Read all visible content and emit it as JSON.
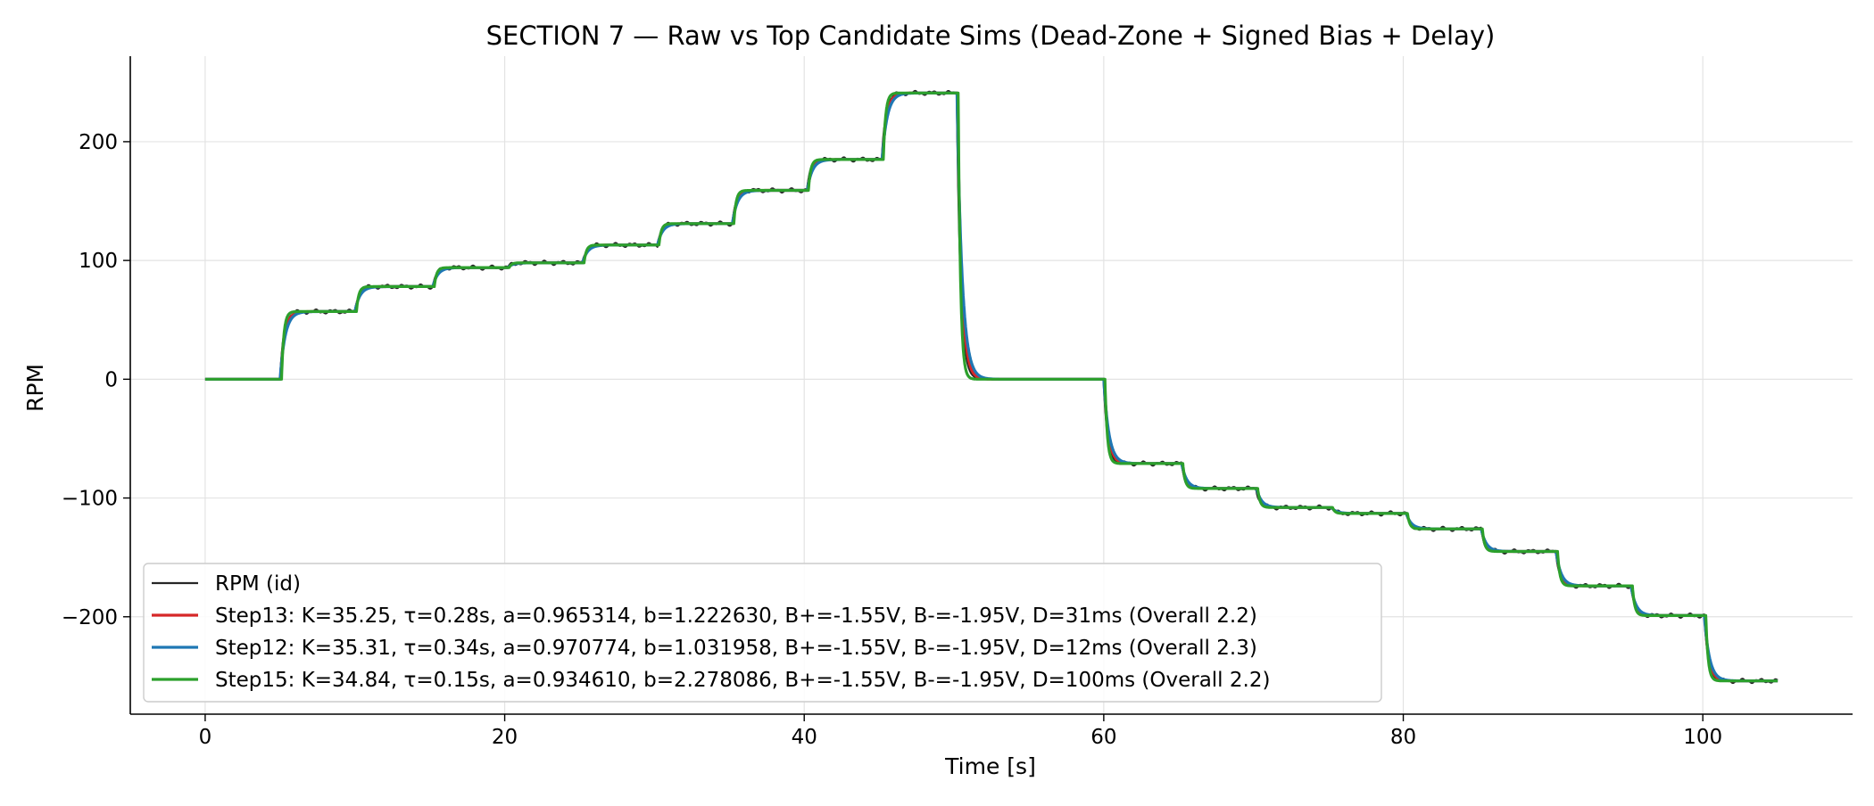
{
  "chart_data": {
    "type": "line",
    "title": "SECTION 7 — Raw vs Top Candidate Sims (Dead-Zone + Signed Bias + Delay)",
    "xlabel": "Time [s]",
    "ylabel": "RPM",
    "xlim": [
      -5,
      110
    ],
    "ylim": [
      -282,
      272
    ],
    "xticks": [
      0,
      20,
      40,
      60,
      80,
      100
    ],
    "yticks": [
      -200,
      -100,
      0,
      100,
      200
    ],
    "grid": true,
    "legend_position": "lower-left",
    "steps": [
      {
        "t": 0,
        "rpm": 0
      },
      {
        "t": 5,
        "rpm": 57
      },
      {
        "t": 10,
        "rpm": 78
      },
      {
        "t": 15.2,
        "rpm": 94
      },
      {
        "t": 20.2,
        "rpm": 98
      },
      {
        "t": 25.2,
        "rpm": 113
      },
      {
        "t": 30.2,
        "rpm": 131
      },
      {
        "t": 35.2,
        "rpm": 159
      },
      {
        "t": 40.2,
        "rpm": 185
      },
      {
        "t": 45.2,
        "rpm": 241
      },
      {
        "t": 50.2,
        "rpm": 0
      },
      {
        "t": 60,
        "rpm": -71
      },
      {
        "t": 65.2,
        "rpm": -92
      },
      {
        "t": 70.2,
        "rpm": -108
      },
      {
        "t": 75.2,
        "rpm": -113
      },
      {
        "t": 80.2,
        "rpm": -126
      },
      {
        "t": 85.2,
        "rpm": -145
      },
      {
        "t": 90.2,
        "rpm": -174
      },
      {
        "t": 95.2,
        "rpm": -199
      },
      {
        "t": 100.1,
        "rpm": -254
      }
    ],
    "t_end": 105,
    "series": [
      {
        "name": "RPM (id)",
        "color": "#262626",
        "stroke_width": 2.2,
        "kind": "raw"
      },
      {
        "name": "Step13: K=35.25, τ=0.28s, a=0.965314, b=1.222630, B+=-1.55V, B-=-1.95V, D=31ms  (Overall 2.2)",
        "color": "#d62728",
        "stroke_width": 3.2,
        "tau": 0.28,
        "delay": 0.031
      },
      {
        "name": "Step12: K=35.31, τ=0.34s, a=0.970774, b=1.031958, B+=-1.55V, B-=-1.95V, D=12ms  (Overall 2.3)",
        "color": "#1f77b4",
        "stroke_width": 3.2,
        "tau": 0.34,
        "delay": 0.012
      },
      {
        "name": "Step15: K=34.84, τ=0.15s, a=0.934610, b=2.278086, B+=-1.55V, B-=-1.95V, D=100ms  (Overall 2.2)",
        "color": "#2ca02c",
        "stroke_width": 3.2,
        "tau": 0.15,
        "delay": 0.1
      }
    ]
  }
}
